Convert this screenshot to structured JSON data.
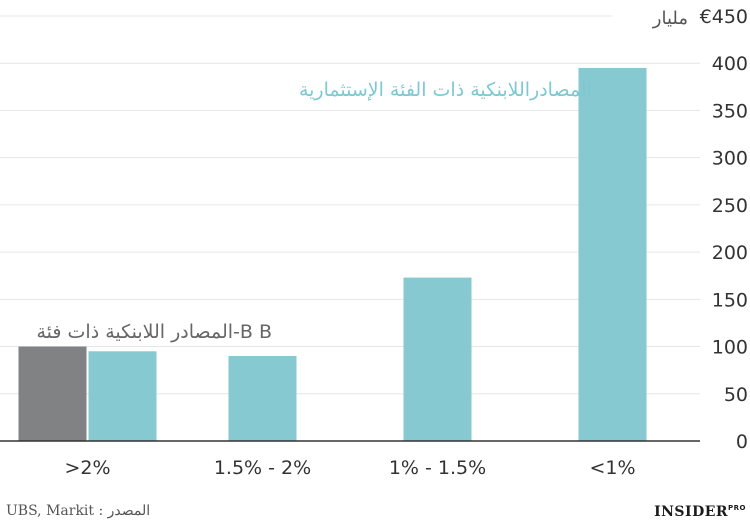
{
  "chart_data": {
    "type": "bar",
    "categories": [
      ">2%",
      "1.5% - 2%",
      "1% - 1.5%",
      "<1%"
    ],
    "series": [
      {
        "name": "المصادر اللابنكية ذات فئة-B B",
        "values": [
          100,
          null,
          null,
          null
        ],
        "color": "#808284"
      },
      {
        "name": "المصادراللابنكية ذات الفئة الإستثمارية",
        "values": [
          95,
          90,
          173,
          395
        ],
        "color": "#86c9d0"
      }
    ],
    "ylim": [
      0,
      450
    ],
    "yticks": [
      0,
      50,
      100,
      150,
      200,
      250,
      300,
      350,
      400,
      450
    ],
    "top_tick_label": "€450",
    "unit_label": "مليار",
    "annotations": {
      "investment_grade": "المصادراللابنكية ذات الفئة الإستثمارية",
      "bb_grade": "المصادر اللابنكية ذات فئة-B B"
    },
    "grid": true,
    "source": "UBS, Markit : المصدر",
    "logo": {
      "text": "INSIDER",
      "sup": "PRO"
    }
  }
}
